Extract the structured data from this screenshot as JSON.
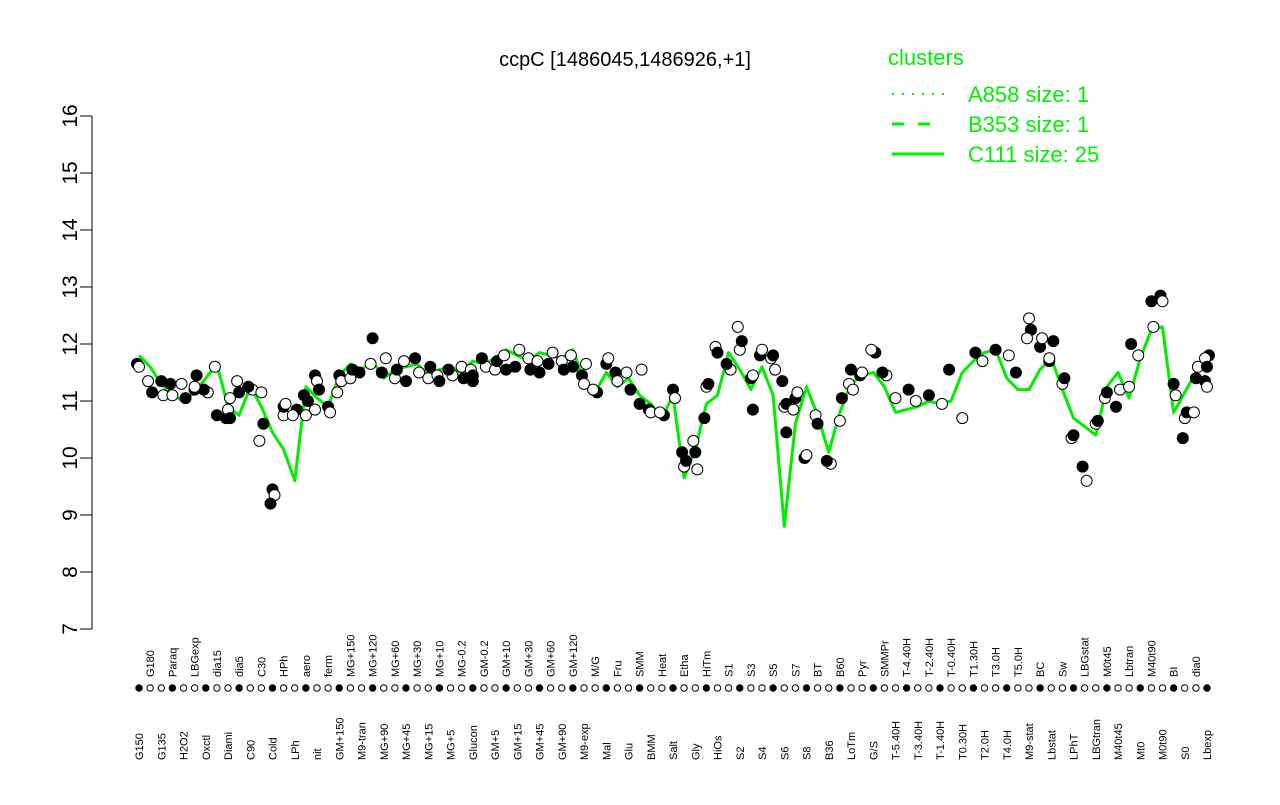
{
  "chart_data": {
    "type": "line",
    "title": "ccpC [1486045,1486926,+1]",
    "xlabel": "",
    "ylabel": "",
    "ylim": [
      7,
      16
    ],
    "yticks": [
      7,
      8,
      9,
      10,
      11,
      12,
      13,
      14,
      15,
      16
    ],
    "grid": false,
    "legend": {
      "title": "clusters",
      "placement": "top-right",
      "entries": [
        {
          "label": "A858 size: 1",
          "style": "dotted"
        },
        {
          "label": "B353 size: 1",
          "style": "dashed"
        },
        {
          "label": "C111 size: 25",
          "style": "solid"
        }
      ]
    },
    "colors": {
      "line": "#00ee00",
      "point_fill": "#000000",
      "point_open": "#ffffff",
      "text": "#000000"
    },
    "categories": [
      "G150",
      "G180",
      "G135",
      "Paraq",
      "H2O2",
      "LBGexp",
      "Oxctl",
      "dia15",
      "Diami",
      "dia5",
      "C90",
      "C30",
      "Cold",
      "HPh",
      "LPh",
      "aero",
      "nit",
      "ferm",
      "GM+150",
      "MG+150",
      "M9-tran",
      "MG+120",
      "MG+90",
      "MG+60",
      "MG+45",
      "MG+30",
      "MG+15",
      "MG+10",
      "MG+5",
      "MG-0.2",
      "Glucon",
      "GM-0.2",
      "GM+5",
      "GM+10",
      "GM+15",
      "GM+30",
      "GM+45",
      "GM+60",
      "GM+90",
      "GM+120",
      "M9-exp",
      "M/G",
      "Mal",
      "Fru",
      "Glu",
      "SMM",
      "BMM",
      "Heat",
      "Salt",
      "Etha",
      "Gly",
      "HiTm",
      "HiOs",
      "S1",
      "S2",
      "S3",
      "S4",
      "S5",
      "S6",
      "S7",
      "S8",
      "BT",
      "B36",
      "B60",
      "LoTm",
      "Pyr",
      "G/S",
      "SMMPr",
      "T-5.40H",
      "T-4.40H",
      "T-3.40H",
      "T-2.40H",
      "T-1.40H",
      "T-0.40H",
      "T0.30H",
      "T1.30H",
      "T2.0H",
      "T3.0H",
      "T4.0H",
      "T5.0H",
      "M9-stat",
      "BC",
      "Lbstat",
      "Sw",
      "LPhT",
      "LBGstat",
      "LBGtran",
      "M0t45",
      "M40t45",
      "Lbtran",
      "Mt0",
      "M40t90",
      "M0t90",
      "BI",
      "S0",
      "dia0",
      "Lbexp"
    ],
    "series": [
      {
        "points": [
          {
            "x": "G150",
            "y": 11.65
          },
          {
            "x": "G150",
            "y": 11.6
          },
          {
            "x": "G180",
            "y": 11.15
          },
          {
            "x": "G180",
            "y": 11.35
          },
          {
            "x": "G135",
            "y": 11.35
          },
          {
            "x": "G135",
            "y": 11.1
          },
          {
            "x": "Paraq",
            "y": 11.3
          },
          {
            "x": "Paraq",
            "y": 11.1
          },
          {
            "x": "H2O2",
            "y": 11.05
          },
          {
            "x": "H2O2",
            "y": 11.3
          },
          {
            "x": "LBGexp",
            "y": 11.2
          },
          {
            "x": "Oxctl",
            "y": 11.15
          },
          {
            "x": "Oxctl",
            "y": 11.2
          },
          {
            "x": "LBGexp",
            "y": 11.25
          },
          {
            "x": "LBGexp",
            "y": 11.45
          },
          {
            "x": "dia15",
            "y": 11.6
          },
          {
            "x": "dia15",
            "y": 10.75
          },
          {
            "x": "Diami",
            "y": 11.05
          },
          {
            "x": "Diami",
            "y": 10.7
          },
          {
            "x": "Diami",
            "y": 10.85
          },
          {
            "x": "Diami",
            "y": 10.7
          },
          {
            "x": "dia5",
            "y": 11.35
          },
          {
            "x": "dia5",
            "y": 11.15
          },
          {
            "x": "C90",
            "y": 11.2
          },
          {
            "x": "C90",
            "y": 11.25
          },
          {
            "x": "C30",
            "y": 11.15
          },
          {
            "x": "C30",
            "y": 10.6
          },
          {
            "x": "C30",
            "y": 10.3
          },
          {
            "x": "Cold",
            "y": 9.45
          },
          {
            "x": "Cold",
            "y": 9.35
          },
          {
            "x": "Cold",
            "y": 9.2
          },
          {
            "x": "HPh",
            "y": 10.75
          },
          {
            "x": "LPh",
            "y": 10.85
          },
          {
            "x": "LPh",
            "y": 10.75
          },
          {
            "x": "HPh",
            "y": 10.9
          },
          {
            "x": "HPh",
            "y": 10.95
          },
          {
            "x": "aero",
            "y": 11.1
          },
          {
            "x": "aero",
            "y": 10.75
          },
          {
            "x": "aero",
            "y": 11.0
          },
          {
            "x": "nit",
            "y": 10.85
          },
          {
            "x": "ferm",
            "y": 10.9
          },
          {
            "x": "ferm",
            "y": 10.8
          },
          {
            "x": "nit",
            "y": 11.45
          },
          {
            "x": "nit",
            "y": 11.35
          },
          {
            "x": "nit",
            "y": 11.2
          },
          {
            "x": "GM+150",
            "y": 11.15
          },
          {
            "x": "GM+150",
            "y": 11.45
          },
          {
            "x": "GM+150",
            "y": 11.35
          },
          {
            "x": "M9-tran",
            "y": 11.5
          },
          {
            "x": "MG+150",
            "y": 11.4
          },
          {
            "x": "MG+150",
            "y": 11.55
          },
          {
            "x": "MG+120",
            "y": 11.65
          },
          {
            "x": "MG+120",
            "y": 12.1
          },
          {
            "x": "MG+90",
            "y": 11.75
          },
          {
            "x": "MG+90",
            "y": 11.5
          },
          {
            "x": "MG+60",
            "y": 11.4
          },
          {
            "x": "MG+60",
            "y": 11.55
          },
          {
            "x": "MG+45",
            "y": 11.7
          },
          {
            "x": "MG+45",
            "y": 11.35
          },
          {
            "x": "MG+30",
            "y": 11.5
          },
          {
            "x": "MG+30",
            "y": 11.75
          },
          {
            "x": "MG+15",
            "y": 11.4
          },
          {
            "x": "MG+15",
            "y": 11.6
          },
          {
            "x": "MG+10",
            "y": 11.45
          },
          {
            "x": "MG+10",
            "y": 11.35
          },
          {
            "x": "MG+5",
            "y": 11.45
          },
          {
            "x": "MG+5",
            "y": 11.55
          },
          {
            "x": "MG-0.2",
            "y": 11.6
          },
          {
            "x": "MG-0.2",
            "y": 11.4
          },
          {
            "x": "Glucon",
            "y": 11.55
          },
          {
            "x": "Glucon",
            "y": 11.35
          },
          {
            "x": "GM-0.2",
            "y": 11.6
          },
          {
            "x": "GM-0.2",
            "y": 11.75
          },
          {
            "x": "GM+5",
            "y": 11.55
          },
          {
            "x": "GM+5",
            "y": 11.7
          },
          {
            "x": "GM+10",
            "y": 11.8
          },
          {
            "x": "GM+10",
            "y": 11.55
          },
          {
            "x": "GM+15",
            "y": 11.9
          },
          {
            "x": "GM+15",
            "y": 11.6
          },
          {
            "x": "GM+30",
            "y": 11.75
          },
          {
            "x": "GM+30",
            "y": 11.55
          },
          {
            "x": "GM+45",
            "y": 11.7
          },
          {
            "x": "GM+45",
            "y": 11.5
          },
          {
            "x": "GM+60",
            "y": 11.85
          },
          {
            "x": "GM+60",
            "y": 11.65
          },
          {
            "x": "GM+90",
            "y": 11.7
          },
          {
            "x": "GM+90",
            "y": 11.55
          },
          {
            "x": "GM+120",
            "y": 11.8
          },
          {
            "x": "GM+120",
            "y": 11.6
          },
          {
            "x": "M9-exp",
            "y": 11.65
          },
          {
            "x": "M9-exp",
            "y": 11.45
          },
          {
            "x": "M9-exp",
            "y": 11.3
          },
          {
            "x": "M/G",
            "y": 11.15
          },
          {
            "x": "M/G",
            "y": 11.2
          },
          {
            "x": "Mal",
            "y": 11.65
          },
          {
            "x": "Mal",
            "y": 11.75
          },
          {
            "x": "Fru",
            "y": 11.5
          },
          {
            "x": "Fru",
            "y": 11.35
          },
          {
            "x": "Glu",
            "y": 11.2
          },
          {
            "x": "Glu",
            "y": 11.5
          },
          {
            "x": "SMM",
            "y": 10.95
          },
          {
            "x": "SMM",
            "y": 11.55
          },
          {
            "x": "BMM",
            "y": 10.85
          },
          {
            "x": "BMM",
            "y": 10.8
          },
          {
            "x": "Heat",
            "y": 10.75
          },
          {
            "x": "Heat",
            "y": 10.8
          },
          {
            "x": "Salt",
            "y": 11.2
          },
          {
            "x": "Salt",
            "y": 11.05
          },
          {
            "x": "Etha",
            "y": 10.1
          },
          {
            "x": "Etha",
            "y": 9.85
          },
          {
            "x": "Etha",
            "y": 9.95
          },
          {
            "x": "Gly",
            "y": 10.3
          },
          {
            "x": "Gly",
            "y": 10.1
          },
          {
            "x": "Gly",
            "y": 9.8
          },
          {
            "x": "HiTm",
            "y": 10.7
          },
          {
            "x": "HiTm",
            "y": 11.25
          },
          {
            "x": "HiTm",
            "y": 11.3
          },
          {
            "x": "HiOs",
            "y": 11.95
          },
          {
            "x": "HiOs",
            "y": 11.85
          },
          {
            "x": "S1",
            "y": 11.55
          },
          {
            "x": "S1",
            "y": 11.65
          },
          {
            "x": "S2",
            "y": 11.9
          },
          {
            "x": "S2",
            "y": 12.05
          },
          {
            "x": "S2",
            "y": 12.3
          },
          {
            "x": "S3",
            "y": 11.4
          },
          {
            "x": "S3",
            "y": 11.45
          },
          {
            "x": "S4",
            "y": 11.8
          },
          {
            "x": "S4",
            "y": 11.9
          },
          {
            "x": "S3",
            "y": 10.85
          },
          {
            "x": "S5",
            "y": 11.75
          },
          {
            "x": "S5",
            "y": 11.8
          },
          {
            "x": "S5",
            "y": 11.55
          },
          {
            "x": "S6",
            "y": 11.35
          },
          {
            "x": "S6",
            "y": 10.9
          },
          {
            "x": "S6",
            "y": 10.95
          },
          {
            "x": "S7",
            "y": 10.85
          },
          {
            "x": "S7",
            "y": 11.05
          },
          {
            "x": "S7",
            "y": 11.15
          },
          {
            "x": "S8",
            "y": 10.0
          },
          {
            "x": "S8",
            "y": 10.05
          },
          {
            "x": "S6",
            "y": 10.45
          },
          {
            "x": "BT",
            "y": 10.75
          },
          {
            "x": "BT",
            "y": 10.6
          },
          {
            "x": "B36",
            "y": 9.9
          },
          {
            "x": "B36",
            "y": 9.95
          },
          {
            "x": "B60",
            "y": 10.65
          },
          {
            "x": "B60",
            "y": 11.05
          },
          {
            "x": "LoTm",
            "y": 11.3
          },
          {
            "x": "LoTm",
            "y": 11.55
          },
          {
            "x": "LoTm",
            "y": 11.2
          },
          {
            "x": "Pyr",
            "y": 11.45
          },
          {
            "x": "Pyr",
            "y": 11.5
          },
          {
            "x": "G/S",
            "y": 11.85
          },
          {
            "x": "G/S",
            "y": 11.9
          },
          {
            "x": "Glucon",
            "y": 11.45
          },
          {
            "x": "SMMPr",
            "y": 11.45
          },
          {
            "x": "SMMPr",
            "y": 11.5
          },
          {
            "x": "T-5.40H",
            "y": 11.05
          },
          {
            "x": "T-4.40H",
            "y": 11.2
          },
          {
            "x": "T-3.40H",
            "y": 11.0
          },
          {
            "x": "T-2.40H",
            "y": 11.1
          },
          {
            "x": "T-1.40H",
            "y": 10.95
          },
          {
            "x": "T-0.40H",
            "y": 11.55
          },
          {
            "x": "T0.30H",
            "y": 10.7
          },
          {
            "x": "T1.30H",
            "y": 11.85
          },
          {
            "x": "T2.0H",
            "y": 11.7
          },
          {
            "x": "T3.0H",
            "y": 11.9
          },
          {
            "x": "T4.0H",
            "y": 11.8
          },
          {
            "x": "T5.0H",
            "y": 11.5
          },
          {
            "x": "M9-stat",
            "y": 12.45
          },
          {
            "x": "M9-stat",
            "y": 12.25
          },
          {
            "x": "M9-stat",
            "y": 12.1
          },
          {
            "x": "BC",
            "y": 11.95
          },
          {
            "x": "BC",
            "y": 12.1
          },
          {
            "x": "Lbstat",
            "y": 11.7
          },
          {
            "x": "Sw",
            "y": 11.3
          },
          {
            "x": "Sw",
            "y": 11.4
          },
          {
            "x": "LPhT",
            "y": 10.35
          },
          {
            "x": "LPhT",
            "y": 10.4
          },
          {
            "x": "LBGstat",
            "y": 9.6
          },
          {
            "x": "LBGstat",
            "y": 9.85
          },
          {
            "x": "LBGtran",
            "y": 10.6
          },
          {
            "x": "LBGtran",
            "y": 10.65
          },
          {
            "x": "M0t45",
            "y": 11.05
          },
          {
            "x": "M0t45",
            "y": 11.15
          },
          {
            "x": "M40t45",
            "y": 11.2
          },
          {
            "x": "M40t45",
            "y": 10.9
          },
          {
            "x": "Lbtran",
            "y": 11.25
          },
          {
            "x": "Lbtran",
            "y": 12.0
          },
          {
            "x": "Mt0",
            "y": 11.8
          },
          {
            "x": "M40t90",
            "y": 12.75
          },
          {
            "x": "M40t90",
            "y": 12.3
          },
          {
            "x": "M0t90",
            "y": 12.85
          },
          {
            "x": "M0t90",
            "y": 12.75
          },
          {
            "x": "Lbstat",
            "y": 12.05
          },
          {
            "x": "Lbstat",
            "y": 11.75
          },
          {
            "x": "BI",
            "y": 11.3
          },
          {
            "x": "BI",
            "y": 11.1
          },
          {
            "x": "S0",
            "y": 10.35
          },
          {
            "x": "S0",
            "y": 10.7
          },
          {
            "x": "S0",
            "y": 10.8
          },
          {
            "x": "dia0",
            "y": 10.8
          },
          {
            "x": "dia0",
            "y": 11.4
          },
          {
            "x": "dia0",
            "y": 11.6
          },
          {
            "x": "Lbexp",
            "y": 11.35
          },
          {
            "x": "Lbexp",
            "y": 11.25
          },
          {
            "x": "Lbexp",
            "y": 11.8
          },
          {
            "x": "Lbexp",
            "y": 11.75
          },
          {
            "x": "Lbexp",
            "y": 11.6
          }
        ]
      }
    ],
    "line_values": [
      11.8,
      11.6,
      11.3,
      11.1,
      11.0,
      11.15,
      11.4,
      11.65,
      10.9,
      10.75,
      11.25,
      10.9,
      10.45,
      10.15,
      9.6,
      11.25,
      11.05,
      10.9,
      11.45,
      11.65,
      11.55,
      11.7,
      11.4,
      11.55,
      11.6,
      11.65,
      11.45,
      11.55,
      11.6,
      11.5,
      11.7,
      11.65,
      11.75,
      11.9,
      11.8,
      11.7,
      11.85,
      11.8,
      11.75,
      11.9,
      11.35,
      11.15,
      11.5,
      11.25,
      11.4,
      11.1,
      10.95,
      10.7,
      11.1,
      9.65,
      10.15,
      10.95,
      11.1,
      11.85,
      11.55,
      11.2,
      11.6,
      11.1,
      8.8,
      10.6,
      11.25,
      10.75,
      10.1,
      10.8,
      11.3,
      11.45,
      11.5,
      11.25,
      10.8,
      10.85,
      10.9,
      11.0,
      10.95,
      11.0,
      11.5,
      11.7,
      11.85,
      11.9,
      11.4,
      11.2,
      11.2,
      11.55,
      11.75,
      11.2,
      10.7,
      10.55,
      10.4,
      11.25,
      11.5,
      11.05,
      11.75,
      12.25,
      12.3,
      10.8,
      11.15,
      11.5,
      11.65
    ]
  }
}
